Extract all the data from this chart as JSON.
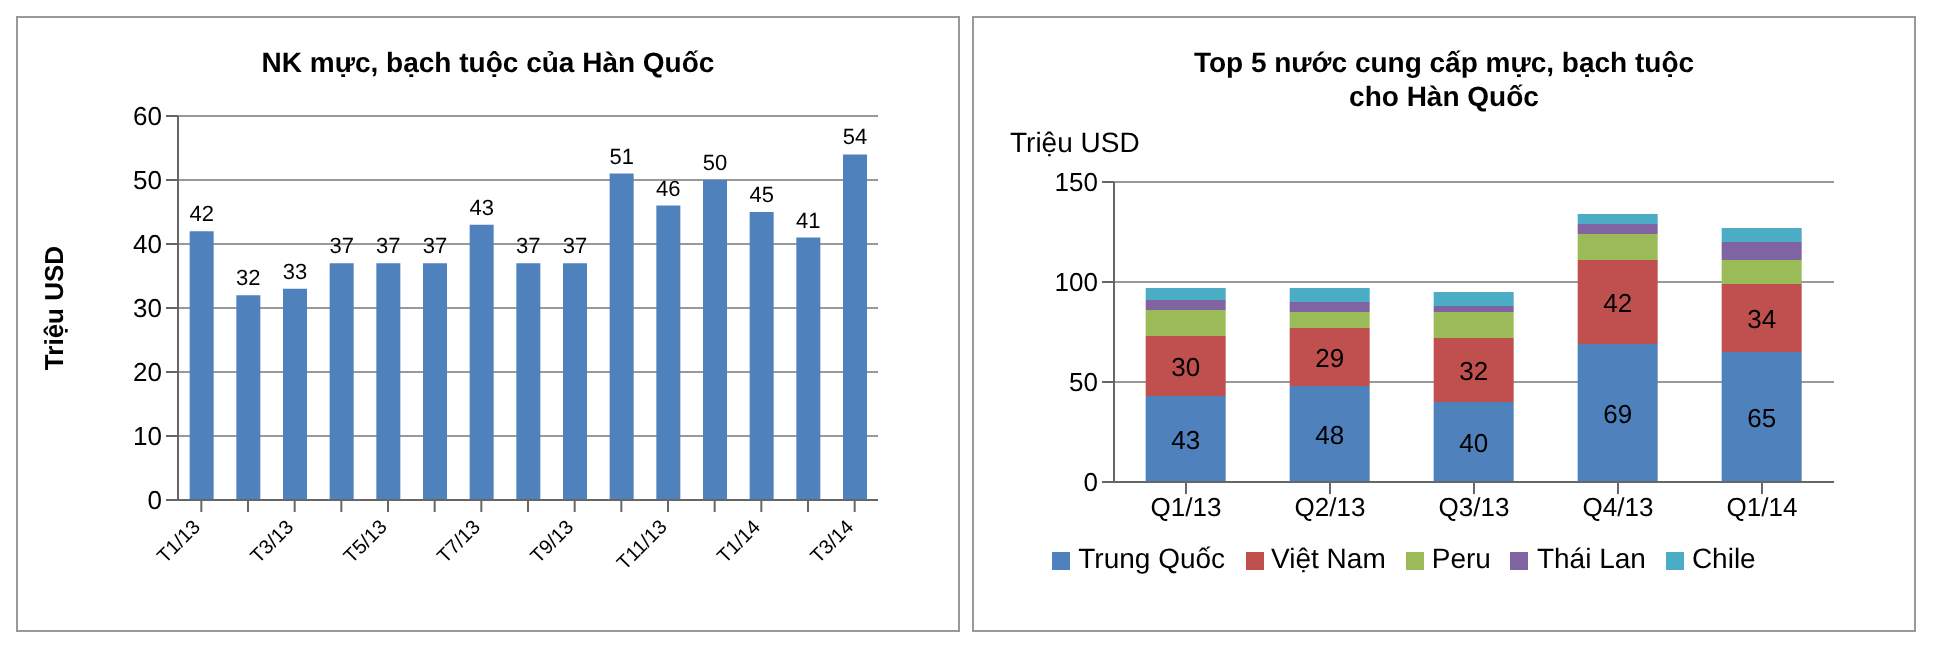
{
  "chart_data": [
    {
      "type": "bar",
      "title": "NK mực, bạch tuộc của Hàn Quốc",
      "ylabel": "Triệu USD",
      "categories": [
        "T1/13",
        null,
        "T3/13",
        null,
        "T5/13",
        null,
        "T7/13",
        null,
        "T9/13",
        null,
        "T11/13",
        null,
        "T1/14",
        null,
        "T3/14"
      ],
      "series": [
        {
          "color": "#4f81bd",
          "values": [
            42,
            32,
            33,
            37,
            37,
            37,
            43,
            37,
            37,
            51,
            46,
            50,
            45,
            41,
            54
          ]
        }
      ],
      "ylim": [
        0,
        60
      ],
      "yticks": [
        0,
        10,
        20,
        30,
        40,
        50,
        60
      ],
      "grid": "y",
      "data_labels": true,
      "legend": false
    },
    {
      "type": "bar",
      "stacked": true,
      "title": "Top 5 nước cung cấp mực, bạch tuộc\ncho Hàn Quốc",
      "ylabel": "Triệu USD",
      "categories": [
        "Q1/13",
        "Q2/13",
        "Q3/13",
        "Q4/13",
        "Q1/14"
      ],
      "series": [
        {
          "name": "Trung Quốc",
          "color": "#4f81bd",
          "values": [
            43,
            48,
            40,
            69,
            65
          ],
          "value_labels": [
            "43",
            "48",
            "40",
            "69",
            "65"
          ]
        },
        {
          "name": "Việt Nam",
          "color": "#c0504d",
          "values": [
            30,
            29,
            32,
            42,
            34
          ],
          "value_labels": [
            "30",
            "29",
            "32",
            "42",
            "34"
          ]
        },
        {
          "name": "Peru",
          "color": "#9bbb59",
          "values": [
            13,
            8,
            13,
            13,
            12
          ]
        },
        {
          "name": "Thái Lan",
          "color": "#8064a2",
          "values": [
            5,
            5,
            3,
            5,
            9
          ]
        },
        {
          "name": "Chile",
          "color": "#4bacc6",
          "values": [
            6,
            7,
            7,
            5,
            7
          ]
        }
      ],
      "ylim": [
        0,
        150
      ],
      "yticks": [
        0,
        50,
        100,
        150
      ],
      "grid": "y",
      "legend": "bottom"
    }
  ]
}
